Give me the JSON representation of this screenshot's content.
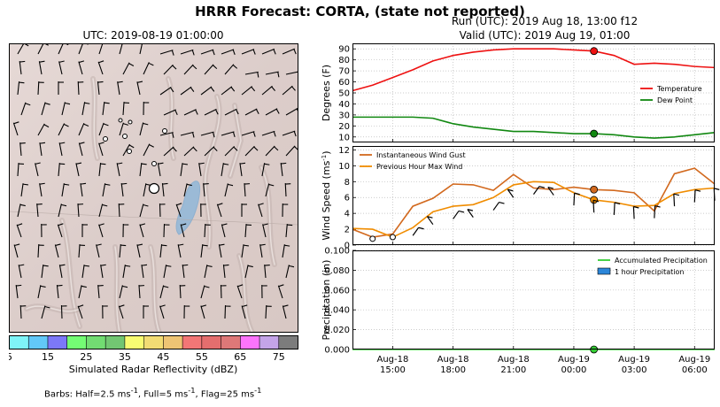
{
  "header": {
    "title": "HRRR Forecast: CORTA, (state not reported)",
    "run_line": "Run (UTC): 2019 Aug 18, 13:00 f12",
    "valid_line": "Valid (UTC): 2019 Aug 19, 01:00"
  },
  "map": {
    "title": "UTC: 2019-08-19 01:00:00",
    "colorbar": {
      "label": "Simulated Radar Reflectivity (dBZ)",
      "tick_labels": [
        "5",
        "15",
        "25",
        "35",
        "45",
        "55",
        "65",
        "75"
      ],
      "colors": [
        "#7ff4f8",
        "#62c8f8",
        "#7c78f8",
        "#74fc74",
        "#72dc72",
        "#72c672",
        "#f8fc72",
        "#f2dc74",
        "#eec474",
        "#f27676",
        "#e46e6e",
        "#de7878",
        "#fc74fc",
        "#c4a4e8",
        "#7c7c7c"
      ]
    },
    "barb_note_prefix": "Barbs: Half=2.5 ms",
    "barb_note_mid1": ", Full=5 ms",
    "barb_note_mid2": ", Flag=25 ms",
    "barb_note_sup": "-1"
  },
  "chart_data": [
    {
      "type": "line",
      "panel": "temperature",
      "ylabel": "Degrees (F)",
      "ylim": [
        5,
        95
      ],
      "yticks": [
        "10",
        "20",
        "30",
        "40",
        "50",
        "60",
        "70",
        "80",
        "90"
      ],
      "x": [
        "13:00",
        "14:00",
        "15:00",
        "16:00",
        "17:00",
        "18:00",
        "19:00",
        "20:00",
        "21:00",
        "22:00",
        "23:00",
        "00:00",
        "01:00",
        "02:00",
        "03:00",
        "04:00",
        "05:00",
        "06:00",
        "07:00"
      ],
      "series": [
        {
          "name": "Temperature",
          "color": "#ee1111",
          "values": [
            52,
            57,
            64,
            71,
            79,
            84,
            87,
            89,
            90,
            90,
            90,
            89,
            88,
            84,
            76,
            77,
            76,
            74,
            73
          ]
        },
        {
          "name": "Dew Point",
          "color": "#118811",
          "values": [
            28,
            28,
            28,
            28,
            27,
            22,
            19,
            17,
            15,
            15,
            14,
            13,
            13,
            12,
            10,
            9,
            10,
            12,
            14
          ]
        }
      ],
      "highlight_index": 12,
      "legend_placement": "right"
    },
    {
      "type": "line",
      "panel": "wind",
      "ylabel_text": "Wind Speed (ms",
      "ylabel_sup": "-1",
      "ylim": [
        0,
        12.5
      ],
      "yticks": [
        "0",
        "2",
        "4",
        "6",
        "8",
        "10",
        "12"
      ],
      "x": [
        "13:00",
        "14:00",
        "15:00",
        "16:00",
        "17:00",
        "18:00",
        "19:00",
        "20:00",
        "21:00",
        "22:00",
        "23:00",
        "00:00",
        "01:00",
        "02:00",
        "03:00",
        "04:00",
        "05:00",
        "06:00",
        "07:00"
      ],
      "series": [
        {
          "name": "Instantaneous Wind Gust",
          "color": "#d2691e",
          "values": [
            2.0,
            1.0,
            1.4,
            4.9,
            5.9,
            7.7,
            7.6,
            6.9,
            8.9,
            7.2,
            7.0,
            7.3,
            7.0,
            6.9,
            6.6,
            4.3,
            9.0,
            9.7,
            7.7
          ]
        },
        {
          "name": "Previous Hour Max Wind",
          "color": "#f08c00",
          "values": [
            2.1,
            2.0,
            1.0,
            2.2,
            4.2,
            4.9,
            5.1,
            6.0,
            7.6,
            8.0,
            7.9,
            6.6,
            5.7,
            5.4,
            4.9,
            5.0,
            6.5,
            7.0,
            7.2
          ]
        }
      ],
      "highlight_index": 12,
      "sustained_circles": [
        0.8,
        1.0
      ],
      "legend_placement": "top-left"
    },
    {
      "type": "bar",
      "panel": "precipitation",
      "ylabel": "Precipitation (in)",
      "ylim": [
        0,
        0.1
      ],
      "yticks": [
        "0.000",
        "0.020",
        "0.040",
        "0.060",
        "0.080",
        "0.100"
      ],
      "x": [
        "13:00",
        "14:00",
        "15:00",
        "16:00",
        "17:00",
        "18:00",
        "19:00",
        "20:00",
        "21:00",
        "22:00",
        "23:00",
        "00:00",
        "01:00",
        "02:00",
        "03:00",
        "04:00",
        "05:00",
        "06:00",
        "07:00"
      ],
      "series": [
        {
          "name": "Accumulated Precipitation",
          "color": "#33cc33",
          "values": [
            0,
            0,
            0,
            0,
            0,
            0,
            0,
            0,
            0,
            0,
            0,
            0,
            0,
            0,
            0,
            0,
            0,
            0,
            0
          ]
        },
        {
          "name": "1 hour Precipitation",
          "color": "#2b86d9",
          "values": [
            0,
            0,
            0,
            0,
            0,
            0,
            0,
            0,
            0,
            0,
            0,
            0,
            0,
            0,
            0,
            0,
            0,
            0,
            0
          ]
        }
      ],
      "highlight_index": 12,
      "x_tick_labels": [
        {
          "line1": "Aug-18",
          "line2": "15:00"
        },
        {
          "line1": "Aug-18",
          "line2": "18:00"
        },
        {
          "line1": "Aug-18",
          "line2": "21:00"
        },
        {
          "line1": "Aug-19",
          "line2": "00:00"
        },
        {
          "line1": "Aug-19",
          "line2": "03:00"
        },
        {
          "line1": "Aug-19",
          "line2": "06:00"
        }
      ],
      "legend_placement": "top-right"
    }
  ]
}
